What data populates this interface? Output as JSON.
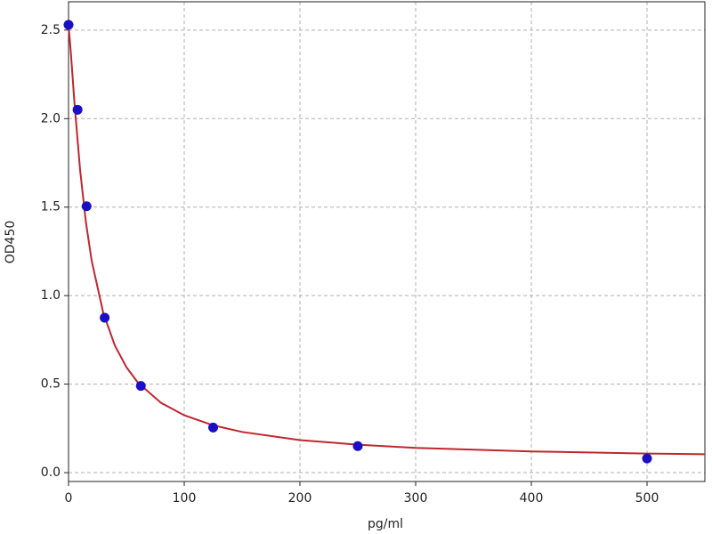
{
  "chart_data": {
    "type": "scatter",
    "xlabel": "pg/ml",
    "ylabel": "OD450",
    "xlim": [
      0,
      550
    ],
    "ylim": [
      -0.05,
      2.66
    ],
    "xticks": [
      0,
      100,
      200,
      300,
      400,
      500
    ],
    "yticks": [
      {
        "value": 0,
        "label": "0.0"
      },
      0.5,
      {
        "value": 1,
        "label": "1.0"
      },
      1.5,
      {
        "value": 2,
        "label": "2.0"
      },
      2.5
    ],
    "grid": true,
    "series": [
      {
        "type": "line",
        "color": "#c0262d",
        "x": [
          0,
          2,
          5,
          10,
          15,
          20,
          30,
          40,
          50,
          60,
          80,
          100,
          125,
          150,
          200,
          250,
          300,
          400,
          500,
          550
        ],
        "values": [
          2.53,
          2.373,
          2.1,
          1.71,
          1.416,
          1.197,
          0.903,
          0.719,
          0.596,
          0.508,
          0.394,
          0.324,
          0.267,
          0.23,
          0.184,
          0.158,
          0.14,
          0.12,
          0.108,
          0.104
        ]
      },
      {
        "type": "scatter",
        "color": "#1a0fc4",
        "x": [
          0,
          7.8,
          15.6,
          31.25,
          62.5,
          125,
          250,
          500
        ],
        "values": [
          2.53,
          2.05,
          1.505,
          0.875,
          0.49,
          0.255,
          0.15,
          0.08
        ]
      }
    ]
  }
}
